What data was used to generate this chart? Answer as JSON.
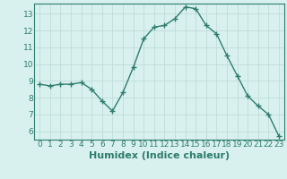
{
  "x": [
    0,
    1,
    2,
    3,
    4,
    5,
    6,
    7,
    8,
    9,
    10,
    11,
    12,
    13,
    14,
    15,
    16,
    17,
    18,
    19,
    20,
    21,
    22,
    23
  ],
  "y": [
    8.8,
    8.7,
    8.8,
    8.8,
    8.9,
    8.5,
    7.8,
    7.2,
    8.3,
    9.8,
    11.5,
    12.2,
    12.3,
    12.7,
    13.4,
    13.3,
    12.3,
    11.8,
    10.5,
    9.3,
    8.1,
    7.5,
    7.0,
    5.7
  ],
  "line_color": "#2e7d6e",
  "marker": "+",
  "marker_size": 4,
  "bg_color": "#d8f0ee",
  "grid_color": "#c0ddd8",
  "xlabel": "Humidex (Indice chaleur)",
  "ylim": [
    5.5,
    13.6
  ],
  "xlim": [
    -0.5,
    23.5
  ],
  "yticks": [
    6,
    7,
    8,
    9,
    10,
    11,
    12,
    13
  ],
  "xticks": [
    0,
    1,
    2,
    3,
    4,
    5,
    6,
    7,
    8,
    9,
    10,
    11,
    12,
    13,
    14,
    15,
    16,
    17,
    18,
    19,
    20,
    21,
    22,
    23
  ],
  "tick_label_fontsize": 6.5,
  "xlabel_fontsize": 8.0,
  "line_width": 1.0,
  "marker_linewidth": 1.0
}
